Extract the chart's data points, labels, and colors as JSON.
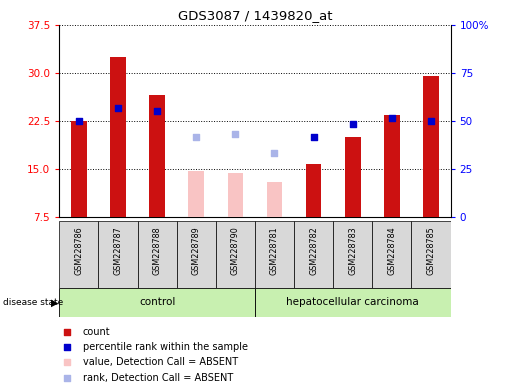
{
  "title": "GDS3087 / 1439820_at",
  "samples": [
    "GSM228786",
    "GSM228787",
    "GSM228788",
    "GSM228789",
    "GSM228790",
    "GSM228781",
    "GSM228782",
    "GSM228783",
    "GSM228784",
    "GSM228785"
  ],
  "count_values": [
    22.5,
    32.5,
    26.5,
    null,
    null,
    null,
    15.8,
    20.0,
    23.5,
    29.5
  ],
  "count_absent": [
    null,
    null,
    null,
    14.7,
    14.3,
    13.0,
    null,
    null,
    null,
    null
  ],
  "percentile_present": [
    22.5,
    24.5,
    24.0,
    null,
    null,
    null,
    20.0,
    22.0,
    23.0,
    22.5
  ],
  "percentile_absent": [
    null,
    null,
    null,
    20.0,
    20.5,
    17.5,
    null,
    null,
    null,
    null
  ],
  "ylim": [
    7.5,
    37.5
  ],
  "yticks": [
    7.5,
    15.0,
    22.5,
    30.0,
    37.5
  ],
  "y2lim": [
    0,
    100
  ],
  "y2ticks": [
    0,
    25,
    50,
    75,
    100
  ],
  "y2ticklabels": [
    "0",
    "25",
    "50",
    "75",
    "100%"
  ],
  "bar_color_present": "#cc1111",
  "bar_color_absent": "#f9c4c4",
  "dot_color_present": "#0000cc",
  "dot_color_absent": "#aab4e8",
  "label_bg": "#d8d8d8",
  "control_bg": "#c8f0b0",
  "cancer_bg": "#c8f0b0"
}
